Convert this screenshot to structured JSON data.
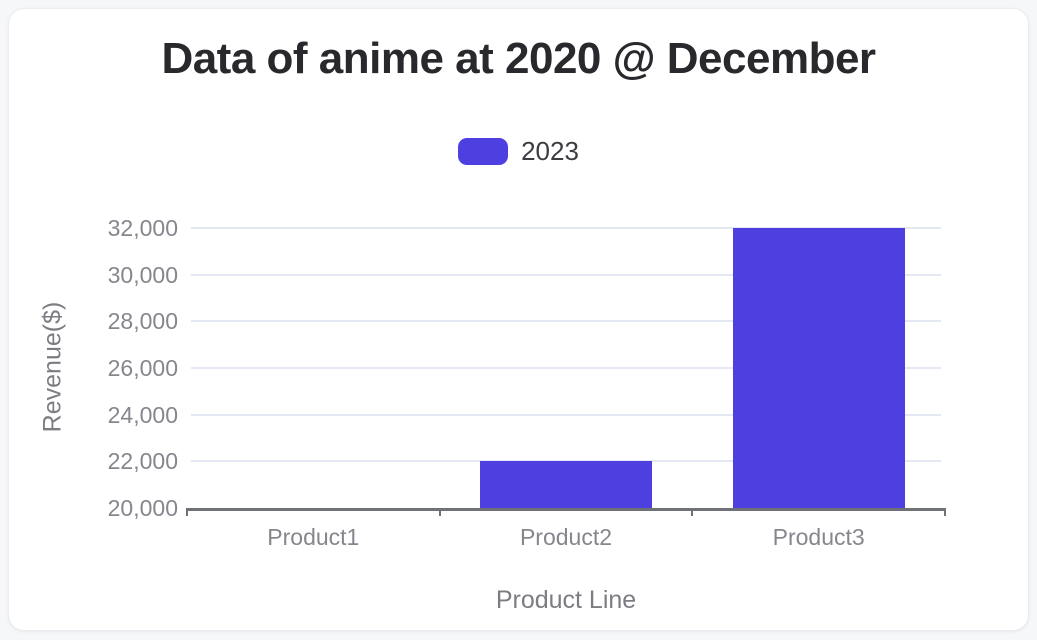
{
  "page": {
    "background_color": "#f6f7f9",
    "card_background_color": "#ffffff"
  },
  "title": "Data of anime at 2020 @ December",
  "legend": {
    "items": [
      {
        "label": "2023",
        "color": "#4d3fe0"
      }
    ]
  },
  "chart_data": {
    "type": "bar",
    "title": "Data of anime at 2020 @ December",
    "categories": [
      "Product1",
      "Product2",
      "Product3"
    ],
    "series": [
      {
        "name": "2023",
        "color": "#4d3fe0",
        "values": [
          20000,
          22000,
          32000
        ]
      }
    ],
    "xlabel": "Product Line",
    "ylabel": "Revenue($)",
    "ylim": [
      20000,
      32000
    ],
    "ytick_step": 2000,
    "yticks": [
      20000,
      22000,
      24000,
      26000,
      28000,
      30000,
      32000
    ],
    "ytick_labels": [
      "20,000",
      "22,000",
      "24,000",
      "26,000",
      "28,000",
      "30,000",
      "32,000"
    ],
    "grid": true,
    "legend_position": "top",
    "colors": {
      "bar": "#4d3fe0",
      "gridline": "#e3e8f2",
      "axis_line": "#6e7177",
      "tick_label": "#85878d",
      "axis_title": "#7b7d82",
      "title": "#28282d"
    }
  }
}
